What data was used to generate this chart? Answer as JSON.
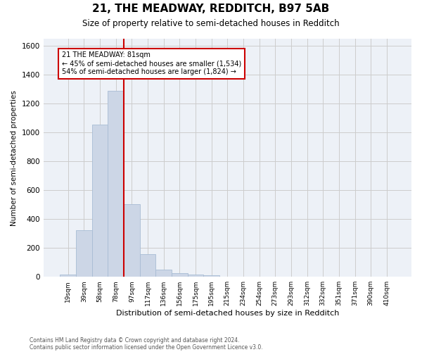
{
  "title": "21, THE MEADWAY, REDDITCH, B97 5AB",
  "subtitle": "Size of property relative to semi-detached houses in Redditch",
  "xlabel": "Distribution of semi-detached houses by size in Redditch",
  "ylabel": "Number of semi-detached properties",
  "footnote1": "Contains HM Land Registry data © Crown copyright and database right 2024.",
  "footnote2": "Contains public sector information licensed under the Open Government Licence v3.0.",
  "property_label": "21 THE MEADWAY: 81sqm",
  "pct_smaller": 45,
  "pct_larger": 54,
  "n_smaller": 1534,
  "n_larger": 1824,
  "bar_color": "#ccd6e6",
  "bar_edge_color": "#a8bcd4",
  "vline_color": "#cc0000",
  "annotation_box_edge": "#cc0000",
  "categories": [
    "19sqm",
    "39sqm",
    "58sqm",
    "78sqm",
    "97sqm",
    "117sqm",
    "136sqm",
    "156sqm",
    "175sqm",
    "195sqm",
    "215sqm",
    "234sqm",
    "254sqm",
    "273sqm",
    "293sqm",
    "312sqm",
    "332sqm",
    "351sqm",
    "371sqm",
    "390sqm",
    "410sqm"
  ],
  "values": [
    15,
    325,
    1055,
    1290,
    505,
    155,
    50,
    25,
    18,
    10,
    0,
    0,
    0,
    0,
    0,
    0,
    0,
    0,
    0,
    0,
    0
  ],
  "ylim": [
    0,
    1650
  ],
  "yticks": [
    0,
    200,
    400,
    600,
    800,
    1000,
    1200,
    1400,
    1600
  ],
  "vline_x": 3.5,
  "grid_color": "#cccccc",
  "bg_color": "#edf1f7",
  "title_fontsize": 11,
  "subtitle_fontsize": 8.5
}
